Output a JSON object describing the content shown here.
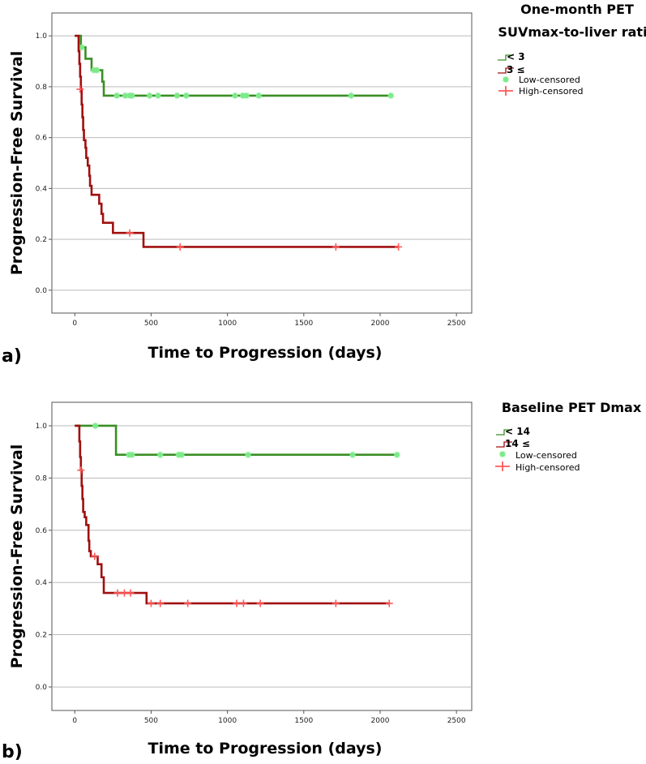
{
  "colors": {
    "low": "#3a8f25",
    "high": "#a01010",
    "low_censor": "#7dea8a",
    "high_censor": "#ff5a5a",
    "grid": "#b0b0b0",
    "frame": "#555555"
  },
  "chart_data": [
    {
      "type": "line",
      "panel_label": "a)",
      "title_lines": [
        "One-month PET",
        "SUVmax-to-liver ratio"
      ],
      "xlabel": "Time to Progression (days)",
      "ylabel": "Progression-Free Survival",
      "xlim": [
        -150,
        2600
      ],
      "ylim": [
        -0.09,
        1.09
      ],
      "x_ticks": [
        0,
        500,
        1000,
        1500,
        2000,
        2500
      ],
      "x_tick_labels": [
        "0",
        "500",
        "1000",
        "1500",
        "2000",
        "2500"
      ],
      "y_ticks": [
        0.0,
        0.2,
        0.4,
        0.6,
        0.8,
        1.0
      ],
      "y_tick_labels": [
        "0.0",
        "0.2",
        "0.4",
        "0.6",
        "0.8",
        "1.0"
      ],
      "grid": "horizontal",
      "legend": {
        "position": "top-right",
        "entries": [
          "< 3",
          "3 ≤",
          "Low-censored",
          "High-censored"
        ]
      },
      "series": [
        {
          "name": "< 3",
          "color_key": "low",
          "steps": [
            [
              0,
              1.0
            ],
            [
              40,
              0.955
            ],
            [
              70,
              0.91
            ],
            [
              110,
              0.865
            ],
            [
              180,
              0.82
            ],
            [
              190,
              0.765
            ],
            [
              2070,
              0.765
            ]
          ],
          "censored": [
            [
              45,
              0.955
            ],
            [
              125,
              0.865
            ],
            [
              145,
              0.865
            ],
            [
              275,
              0.765
            ],
            [
              330,
              0.765
            ],
            [
              360,
              0.765
            ],
            [
              375,
              0.765
            ],
            [
              490,
              0.765
            ],
            [
              545,
              0.765
            ],
            [
              670,
              0.765
            ],
            [
              730,
              0.765
            ],
            [
              1050,
              0.765
            ],
            [
              1100,
              0.765
            ],
            [
              1125,
              0.765
            ],
            [
              1205,
              0.765
            ],
            [
              1810,
              0.765
            ],
            [
              2070,
              0.765
            ]
          ]
        },
        {
          "name": "3 ≤",
          "color_key": "high",
          "steps": [
            [
              0,
              1.0
            ],
            [
              25,
              0.94
            ],
            [
              30,
              0.89
            ],
            [
              35,
              0.84
            ],
            [
              40,
              0.79
            ],
            [
              45,
              0.73
            ],
            [
              50,
              0.68
            ],
            [
              55,
              0.63
            ],
            [
              60,
              0.59
            ],
            [
              70,
              0.56
            ],
            [
              75,
              0.52
            ],
            [
              85,
              0.49
            ],
            [
              95,
              0.45
            ],
            [
              100,
              0.41
            ],
            [
              110,
              0.375
            ],
            [
              160,
              0.34
            ],
            [
              175,
              0.3
            ],
            [
              185,
              0.265
            ],
            [
              250,
              0.225
            ],
            [
              450,
              0.17
            ],
            [
              2120,
              0.17
            ]
          ],
          "censored": [
            [
              35,
              0.79
            ],
            [
              360,
              0.225
            ],
            [
              690,
              0.17
            ],
            [
              1710,
              0.17
            ],
            [
              2120,
              0.17
            ]
          ]
        }
      ]
    },
    {
      "type": "line",
      "panel_label": "b)",
      "title_lines": [
        "Baseline PET Dmax"
      ],
      "xlabel": "Time to Progression (days)",
      "ylabel": "Progression-Free Survival",
      "xlim": [
        -150,
        2600
      ],
      "ylim": [
        -0.09,
        1.09
      ],
      "x_ticks": [
        0,
        500,
        1000,
        1500,
        2000,
        2500
      ],
      "x_tick_labels": [
        "0",
        "500",
        "1000",
        "1500",
        "2000",
        "2500"
      ],
      "y_ticks": [
        0.0,
        0.2,
        0.4,
        0.6,
        0.8,
        1.0
      ],
      "y_tick_labels": [
        "0.0",
        "0.2",
        "0.4",
        "0.6",
        "0.8",
        "1.0"
      ],
      "grid": "horizontal",
      "legend": {
        "position": "top-right",
        "entries": [
          "< 14",
          "14 ≤",
          "Low-censored",
          "High-censored"
        ]
      },
      "series": [
        {
          "name": "< 14",
          "color_key": "low",
          "steps": [
            [
              0,
              1.0
            ],
            [
              270,
              0.889
            ],
            [
              2110,
              0.889
            ]
          ],
          "censored": [
            [
              135,
              1.0
            ],
            [
              355,
              0.889
            ],
            [
              375,
              0.889
            ],
            [
              560,
              0.889
            ],
            [
              680,
              0.889
            ],
            [
              700,
              0.889
            ],
            [
              1135,
              0.889
            ],
            [
              1820,
              0.889
            ],
            [
              2110,
              0.889
            ]
          ]
        },
        {
          "name": "14 ≤",
          "color_key": "high",
          "steps": [
            [
              0,
              1.0
            ],
            [
              30,
              0.94
            ],
            [
              35,
              0.88
            ],
            [
              40,
              0.83
            ],
            [
              45,
              0.77
            ],
            [
              50,
              0.72
            ],
            [
              55,
              0.67
            ],
            [
              65,
              0.65
            ],
            [
              75,
              0.62
            ],
            [
              90,
              0.56
            ],
            [
              95,
              0.52
            ],
            [
              105,
              0.5
            ],
            [
              150,
              0.47
            ],
            [
              175,
              0.42
            ],
            [
              190,
              0.36
            ],
            [
              470,
              0.32
            ],
            [
              2060,
              0.32
            ]
          ],
          "censored": [
            [
              40,
              0.83
            ],
            [
              130,
              0.5
            ],
            [
              280,
              0.36
            ],
            [
              325,
              0.36
            ],
            [
              365,
              0.36
            ],
            [
              500,
              0.32
            ],
            [
              560,
              0.32
            ],
            [
              740,
              0.32
            ],
            [
              1060,
              0.32
            ],
            [
              1105,
              0.32
            ],
            [
              1215,
              0.32
            ],
            [
              1710,
              0.32
            ],
            [
              2060,
              0.32
            ]
          ]
        }
      ]
    }
  ]
}
